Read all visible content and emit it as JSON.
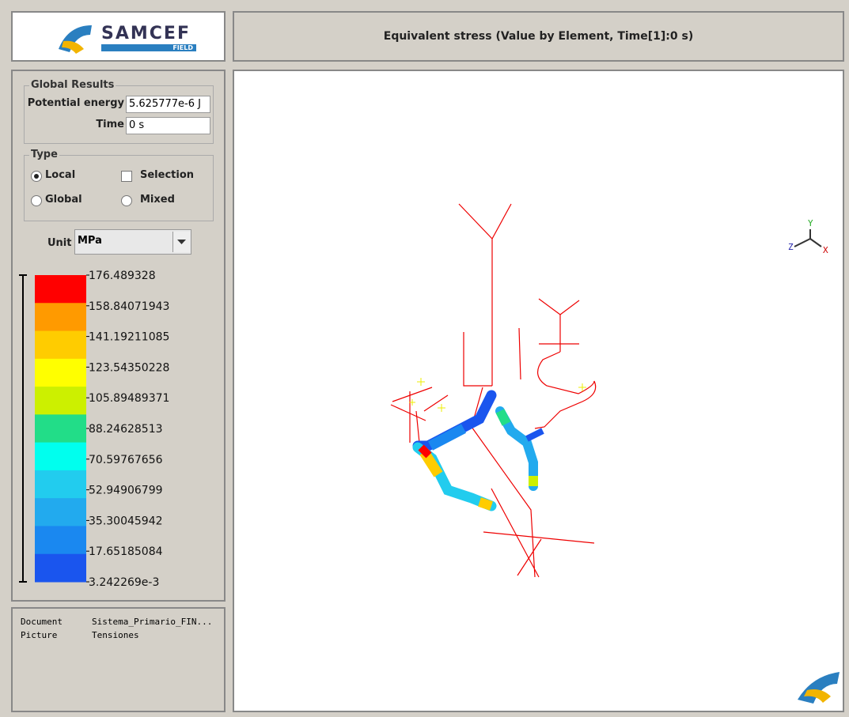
{
  "logo": {
    "name": "SAMCEF",
    "sub": "FIELD"
  },
  "title": "Equivalent stress (Value by Element, Time[1]:0 s)",
  "global_results": {
    "title": "Global Results",
    "rows": [
      {
        "label": "Potential energy",
        "value": "5.625777e-6 J"
      },
      {
        "label": "Time",
        "value": "0 s"
      }
    ]
  },
  "type_group": {
    "title": "Type",
    "options": [
      {
        "label": "Local",
        "checked": true
      },
      {
        "label": "Selection",
        "checked": false
      },
      {
        "label": "Global",
        "checked": false
      },
      {
        "label": "Mixed",
        "checked": false
      }
    ]
  },
  "unit": {
    "label": "Unit :",
    "value": "MPa"
  },
  "legend": {
    "labels": [
      "176.489328",
      "158.84071943",
      "141.19211085",
      "123.54350228",
      "105.89489371",
      "88.24628513",
      "70.59767656",
      "52.94906799",
      "35.30045942",
      "17.65185084",
      "3.242269e-3"
    ],
    "colors": [
      "#ff0000",
      "#ff9a00",
      "#ffcc00",
      "#ffff00",
      "#ccf000",
      "#22dd88",
      "#00ffee",
      "#22ccee",
      "#22aaee",
      "#1a88f0",
      "#1a55ee"
    ]
  },
  "info": [
    {
      "key": "Document",
      "value": "Sistema_Primario_FIN..."
    },
    {
      "key": "Picture",
      "value": "Tensiones"
    }
  ],
  "triad": {
    "y": "Y",
    "z": "Z",
    "x": "X"
  }
}
